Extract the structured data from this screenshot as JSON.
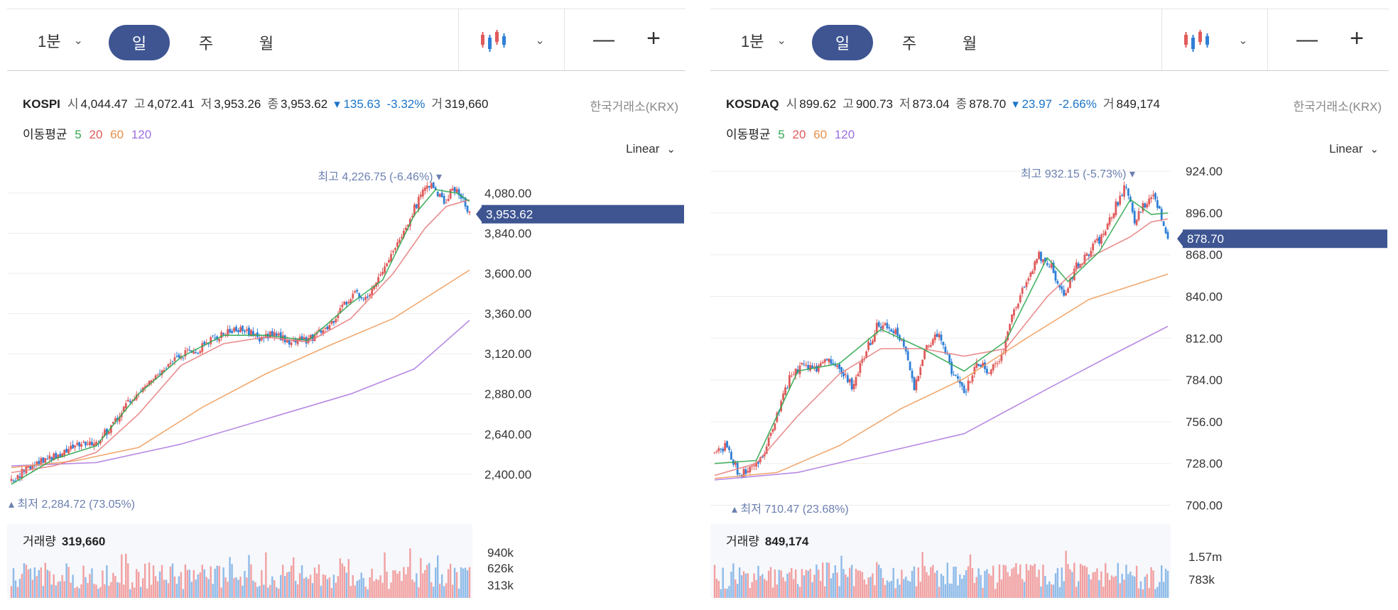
{
  "colors": {
    "up": "#e05a5a",
    "down": "#2f7fd6",
    "ma5": "#32a852",
    "ma20": "#e88080",
    "ma60": "#f0a060",
    "ma120": "#b07de0",
    "accent": "#3e5592",
    "label_bg": "#3e5592",
    "hl": "#6b7fb0"
  },
  "panels": [
    {
      "toolbar": {
        "interval": "1분",
        "day": "일",
        "week": "주",
        "month": "월"
      },
      "symbol": "KOSPI",
      "open_label": "시",
      "open": "4,044.47",
      "high_label": "고",
      "high": "4,072.41",
      "low_label": "저",
      "low": "3,953.26",
      "close_label": "종",
      "close": "3,953.62",
      "change": "▾ 135.63",
      "change_pct": "-3.32%",
      "volume_label": "거",
      "volume": "319,660",
      "exchange": "한국거래소(KRX)",
      "ma_label": "이동평균",
      "ma": [
        "5",
        "20",
        "60",
        "120"
      ],
      "scale": "Linear",
      "high_marker": "최고 4,226.75 (-6.46%) ▾",
      "low_marker": "▴ 최저 2,284.72 (73.05%)",
      "current_price": "3,953.62",
      "vol_title": "거래량",
      "vol_value": "319,660",
      "chart_data": {
        "type": "candlestick",
        "title": "KOSPI",
        "y_ticks": [
          "4,080.00",
          "3,840.00",
          "3,600.00",
          "3,360.00",
          "3,120.00",
          "2,880.00",
          "2,640.00",
          "2,400.00"
        ],
        "ylim": [
          2200,
          4300
        ],
        "close_path": [
          [
            0,
            2360
          ],
          [
            8,
            2440
          ],
          [
            18,
            2500
          ],
          [
            30,
            2560
          ],
          [
            40,
            2580
          ],
          [
            48,
            2700
          ],
          [
            56,
            2850
          ],
          [
            64,
            2930
          ],
          [
            72,
            3010
          ],
          [
            78,
            3110
          ],
          [
            86,
            3130
          ],
          [
            92,
            3190
          ],
          [
            100,
            3250
          ],
          [
            110,
            3270
          ],
          [
            116,
            3210
          ],
          [
            124,
            3240
          ],
          [
            132,
            3190
          ],
          [
            140,
            3210
          ],
          [
            148,
            3260
          ],
          [
            156,
            3400
          ],
          [
            162,
            3480
          ],
          [
            168,
            3460
          ],
          [
            176,
            3620
          ],
          [
            184,
            3820
          ],
          [
            190,
            3990
          ],
          [
            196,
            4150
          ],
          [
            200,
            4100
          ],
          [
            204,
            4020
          ],
          [
            208,
            4120
          ],
          [
            212,
            4060
          ],
          [
            216,
            3954
          ]
        ],
        "ma5": [
          [
            0,
            2340
          ],
          [
            20,
            2490
          ],
          [
            40,
            2570
          ],
          [
            60,
            2880
          ],
          [
            80,
            3100
          ],
          [
            100,
            3230
          ],
          [
            120,
            3230
          ],
          [
            140,
            3200
          ],
          [
            160,
            3420
          ],
          [
            175,
            3560
          ],
          [
            190,
            3950
          ],
          [
            200,
            4100
          ],
          [
            210,
            4080
          ],
          [
            216,
            4030
          ]
        ],
        "ma20": [
          [
            0,
            2410
          ],
          [
            20,
            2450
          ],
          [
            40,
            2530
          ],
          [
            60,
            2760
          ],
          [
            80,
            3050
          ],
          [
            100,
            3180
          ],
          [
            120,
            3220
          ],
          [
            140,
            3190
          ],
          [
            160,
            3330
          ],
          [
            180,
            3600
          ],
          [
            195,
            3870
          ],
          [
            205,
            4000
          ],
          [
            216,
            4040
          ]
        ],
        "ma60": [
          [
            0,
            2440
          ],
          [
            30,
            2480
          ],
          [
            60,
            2560
          ],
          [
            90,
            2800
          ],
          [
            120,
            3000
          ],
          [
            150,
            3170
          ],
          [
            180,
            3330
          ],
          [
            216,
            3620
          ]
        ],
        "ma120": [
          [
            0,
            2450
          ],
          [
            40,
            2470
          ],
          [
            80,
            2580
          ],
          [
            120,
            2730
          ],
          [
            160,
            2880
          ],
          [
            190,
            3030
          ],
          [
            216,
            3320
          ]
        ],
        "vol_ticks": [
          "940k",
          "626k",
          "313k"
        ]
      }
    },
    {
      "toolbar": {
        "interval": "1분",
        "day": "일",
        "week": "주",
        "month": "월"
      },
      "symbol": "KOSDAQ",
      "open_label": "시",
      "open": "899.62",
      "high_label": "고",
      "high": "900.73",
      "low_label": "저",
      "low": "873.04",
      "close_label": "종",
      "close": "878.70",
      "change": "▾ 23.97",
      "change_pct": "-2.66%",
      "volume_label": "거",
      "volume": "849,174",
      "exchange": "한국거래소(KRX)",
      "ma_label": "이동평균",
      "ma": [
        "5",
        "20",
        "60",
        "120"
      ],
      "scale": "Linear",
      "high_marker": "최고 932.15 (-5.73%) ▾",
      "low_marker": "▴ 최저 710.47 (23.68%)",
      "current_price": "878.70",
      "vol_title": "거래량",
      "vol_value": "849,174",
      "chart_data": {
        "type": "candlestick",
        "title": "KOSDAQ",
        "y_ticks": [
          "924.00",
          "896.00",
          "868.00",
          "840.00",
          "812.00",
          "784.00",
          "756.00",
          "728.00",
          "700.00"
        ],
        "ylim": [
          695,
          935
        ],
        "close_path": [
          [
            0,
            735
          ],
          [
            6,
            740
          ],
          [
            12,
            720
          ],
          [
            18,
            725
          ],
          [
            24,
            735
          ],
          [
            30,
            760
          ],
          [
            36,
            785
          ],
          [
            42,
            795
          ],
          [
            48,
            790
          ],
          [
            54,
            800
          ],
          [
            60,
            790
          ],
          [
            66,
            780
          ],
          [
            72,
            800
          ],
          [
            78,
            820
          ],
          [
            84,
            820
          ],
          [
            90,
            812
          ],
          [
            96,
            780
          ],
          [
            102,
            808
          ],
          [
            108,
            815
          ],
          [
            114,
            790
          ],
          [
            120,
            775
          ],
          [
            126,
            795
          ],
          [
            132,
            790
          ],
          [
            138,
            800
          ],
          [
            144,
            830
          ],
          [
            150,
            850
          ],
          [
            156,
            868
          ],
          [
            162,
            860
          ],
          [
            168,
            840
          ],
          [
            174,
            860
          ],
          [
            180,
            870
          ],
          [
            186,
            880
          ],
          [
            192,
            898
          ],
          [
            198,
            915
          ],
          [
            202,
            890
          ],
          [
            206,
            900
          ],
          [
            210,
            908
          ],
          [
            214,
            898
          ],
          [
            218,
            879
          ]
        ],
        "ma5": [
          [
            0,
            728
          ],
          [
            20,
            730
          ],
          [
            40,
            790
          ],
          [
            60,
            795
          ],
          [
            80,
            818
          ],
          [
            100,
            805
          ],
          [
            120,
            790
          ],
          [
            140,
            810
          ],
          [
            160,
            866
          ],
          [
            170,
            850
          ],
          [
            185,
            870
          ],
          [
            200,
            905
          ],
          [
            210,
            895
          ],
          [
            218,
            896
          ]
        ],
        "ma20": [
          [
            0,
            720
          ],
          [
            20,
            728
          ],
          [
            40,
            760
          ],
          [
            60,
            788
          ],
          [
            80,
            805
          ],
          [
            100,
            805
          ],
          [
            120,
            800
          ],
          [
            140,
            805
          ],
          [
            160,
            840
          ],
          [
            180,
            866
          ],
          [
            200,
            880
          ],
          [
            210,
            890
          ],
          [
            218,
            892
          ]
        ],
        "ma60": [
          [
            0,
            718
          ],
          [
            30,
            722
          ],
          [
            60,
            740
          ],
          [
            90,
            765
          ],
          [
            120,
            785
          ],
          [
            150,
            812
          ],
          [
            180,
            838
          ],
          [
            218,
            855
          ]
        ],
        "ma120": [
          [
            0,
            717
          ],
          [
            40,
            722
          ],
          [
            80,
            735
          ],
          [
            120,
            748
          ],
          [
            160,
            778
          ],
          [
            190,
            800
          ],
          [
            218,
            820
          ]
        ],
        "vol_ticks": [
          "1.57m",
          "783k"
        ]
      }
    }
  ]
}
